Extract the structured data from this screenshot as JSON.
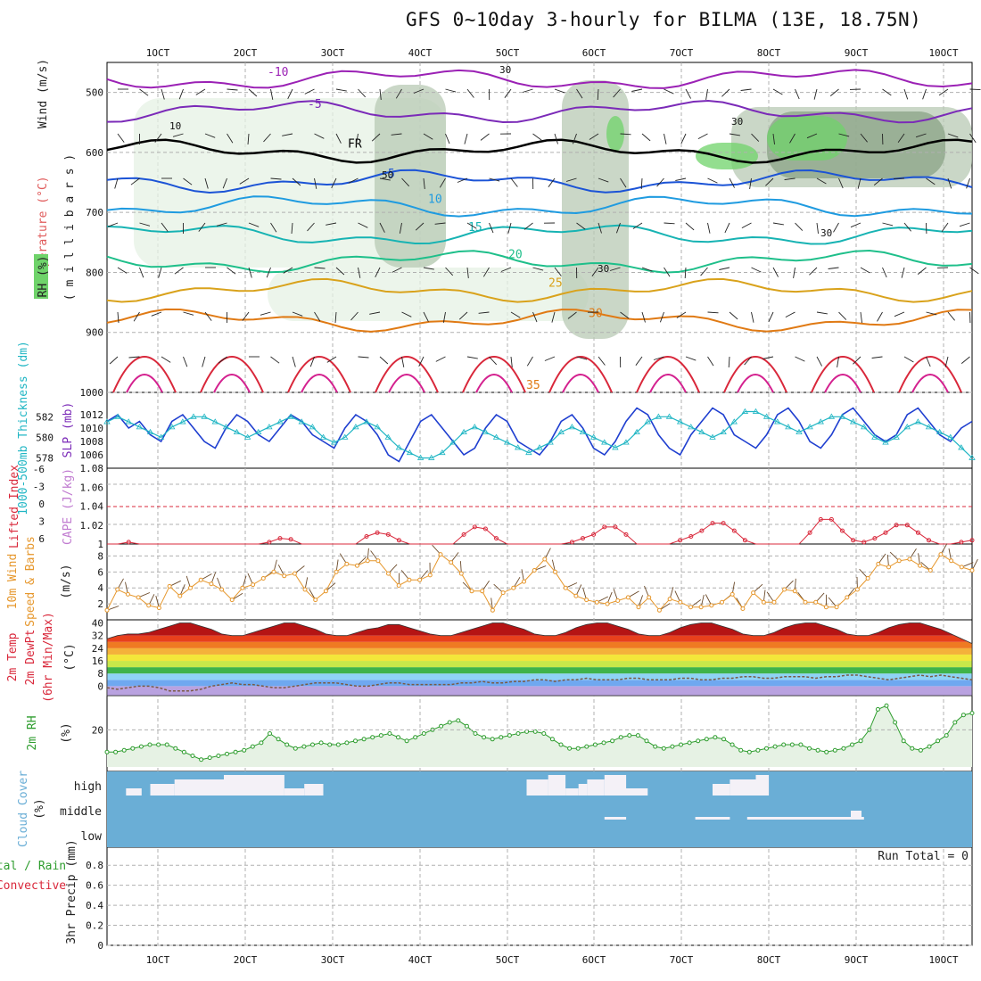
{
  "title": "GFS 0~10day 3-hourly for BILMA (13E, 18.75N)",
  "x_labels": [
    "1OCT",
    "2OCT",
    "3OCT",
    "4OCT",
    "5OCT",
    "6OCT",
    "7OCT",
    "8OCT",
    "9OCT",
    "10OCT"
  ],
  "colors": {
    "grid": "#b0b0b0",
    "rh_light": "#e6f2e4",
    "rh_mid": "#b8c9b4",
    "rh_dark": "#8aa386",
    "rh_green": "#6fd36a",
    "t_m10": "#9b21b5",
    "t_m5": "#7b2ab8",
    "t_fr": "#000000",
    "t_5": "#1b53d6",
    "t_10": "#1f9be0",
    "t_15": "#17b3b3",
    "t_20": "#1ebf8a",
    "t_25": "#d9a21b",
    "t_30": "#e07a14",
    "t_35": "#d9283b",
    "t_40": "#d4218f",
    "slp": "#1f3fd0",
    "thick": "#20b6c4",
    "cape": "#d9283b",
    "wind10": "#e6972c",
    "barb": "#6b4a2a",
    "rh2m": "#2e9d2e",
    "cloud": "#6aaed6",
    "dew": "#7a5a44"
  },
  "chart_data": [
    {
      "type": "contour",
      "panel": "upper-air",
      "ylabel": "Wind (m/s), Temperature (°C), RH (%) — millibars",
      "y_ticks": [
        500,
        600,
        700,
        800,
        900,
        1000
      ],
      "ylim": [
        450,
        1000
      ],
      "isotherm_labels": [
        "-10",
        "-5",
        "FR",
        "5",
        "10",
        "15",
        "20",
        "25",
        "30",
        "35"
      ],
      "isotherm_levels": [
        {
          "label": "-10",
          "base": 478
        },
        {
          "label": "-5",
          "base": 532
        },
        {
          "label": "FR",
          "base": 598
        },
        {
          "label": "5",
          "base": 648
        },
        {
          "label": "10",
          "base": 690
        },
        {
          "label": "15",
          "base": 737
        },
        {
          "label": "20",
          "base": 782
        },
        {
          "label": "25",
          "base": 830
        },
        {
          "label": "30",
          "base": 880
        }
      ],
      "rh_labels": [
        "10",
        "30",
        "50",
        "30",
        "30",
        "30"
      ]
    },
    {
      "type": "line",
      "panel": "slp-thickness",
      "y_ticks_left": [
        578,
        580,
        582
      ],
      "y_ticks_right": [
        1006,
        1008,
        1010,
        1012
      ],
      "series": [
        {
          "name": "SLP (mb)",
          "values": [
            1011,
            1012,
            1010,
            1011,
            1009,
            1008,
            1011,
            1012,
            1010,
            1008,
            1007,
            1010,
            1012,
            1011,
            1009,
            1008,
            1010,
            1012,
            1011,
            1009,
            1008,
            1007,
            1010,
            1012,
            1011,
            1009,
            1006,
            1005,
            1008,
            1011,
            1012,
            1010,
            1008,
            1006,
            1007,
            1010,
            1012,
            1011,
            1008,
            1007,
            1006,
            1008,
            1011,
            1012,
            1010,
            1007,
            1006,
            1008,
            1011,
            1013,
            1012,
            1009,
            1007,
            1006,
            1009,
            1011,
            1013,
            1012,
            1009,
            1008,
            1007,
            1009,
            1012,
            1013,
            1011,
            1008,
            1007,
            1009,
            1012,
            1013,
            1011,
            1009,
            1008,
            1009,
            1012,
            1013,
            1011,
            1009,
            1008,
            1010,
            1011
          ]
        },
        {
          "name": "1000-500mb Thickness (dm)",
          "values": [
            581.5,
            582,
            581.5,
            581,
            580.5,
            580,
            581,
            581.5,
            582,
            582,
            581.5,
            581,
            580.5,
            580,
            580.5,
            581,
            581.5,
            582,
            581.5,
            581,
            580,
            579.5,
            580,
            581,
            581.5,
            581,
            580,
            579,
            578.5,
            578,
            578,
            578.5,
            579.5,
            580.5,
            581,
            580.5,
            580,
            579.5,
            579,
            578.5,
            579,
            579.5,
            580.5,
            581,
            580.5,
            580,
            579.5,
            579,
            579.5,
            580.5,
            581.5,
            582,
            582,
            581.5,
            581,
            580.5,
            580,
            580.5,
            581.5,
            582.5,
            582.5,
            582,
            581.5,
            581,
            580.5,
            581,
            581.5,
            582,
            582,
            581.5,
            581,
            580,
            579.5,
            580,
            581,
            581.5,
            581,
            580.5,
            580,
            579,
            578
          ]
        }
      ]
    },
    {
      "type": "line",
      "panel": "lifted-index-cape",
      "y_ticks_left": [
        -6,
        -3,
        0,
        3,
        6
      ],
      "y_ticks_right": [
        1,
        1.02,
        1.04,
        1.06,
        1.08
      ],
      "series": [
        {
          "name": "CAPE (J/kg)",
          "values": [
            1,
            1,
            1.002,
            1,
            1,
            1,
            1,
            1,
            1,
            1,
            1,
            1,
            1,
            1,
            1,
            1.002,
            1.006,
            1.005,
            1,
            1,
            1,
            1,
            1,
            1,
            1.008,
            1.012,
            1.01,
            1.004,
            1,
            1,
            1,
            1,
            1,
            1.01,
            1.018,
            1.016,
            1.006,
            1,
            1,
            1,
            1,
            1,
            1,
            1.002,
            1.006,
            1.01,
            1.018,
            1.018,
            1.01,
            1,
            1,
            1,
            1,
            1.004,
            1.008,
            1.014,
            1.022,
            1.022,
            1.014,
            1.004,
            1,
            1,
            1,
            1,
            1,
            1.012,
            1.026,
            1.026,
            1.014,
            1.004,
            1.002,
            1.006,
            1.012,
            1.02,
            1.02,
            1.012,
            1.004,
            1,
            1,
            1.002,
            1.004
          ]
        },
        {
          "name": "Lifted Index",
          "values": []
        }
      ]
    },
    {
      "type": "line",
      "panel": "10m-wind",
      "y_ticks": [
        2,
        4,
        6,
        8
      ],
      "ylabel": "10m Wind Speed & Barbs (m/s)",
      "series": [
        {
          "name": "10m Wind Speed",
          "values": [
            1.2,
            3.8,
            3.2,
            2.8,
            1.8,
            1.5,
            4.2,
            3,
            4,
            5,
            4.5,
            3.8,
            2.5,
            4,
            4.4,
            5.2,
            6,
            5.5,
            5.8,
            3.8,
            2.5,
            3.6,
            6,
            7,
            6.8,
            7.4,
            7.4,
            5.8,
            4.3,
            5,
            5,
            5.6,
            8.2,
            7.2,
            5.8,
            3.6,
            3.6,
            1.2,
            3.4,
            4,
            4.8,
            6.2,
            7.6,
            6,
            4,
            3,
            2.5,
            2.2,
            2,
            2.4,
            2.8,
            1.6,
            2.8,
            1.2,
            2.6,
            2.2,
            1.6,
            1.6,
            1.8,
            2.2,
            3.2,
            1.4,
            3.4,
            2.2,
            2.2,
            3.8,
            3.6,
            2.2,
            2.2,
            1.6,
            1.6,
            2.8,
            3.8,
            5.2,
            7,
            6.6,
            7.4,
            7.6,
            6.8,
            6.2,
            8.2,
            7.4,
            6.6,
            6.2
          ]
        }
      ]
    },
    {
      "type": "area",
      "panel": "2m-temp",
      "y_ticks": [
        0,
        8,
        16,
        24,
        32,
        40
      ],
      "ylabel": "2m Temp, 2m DewPt (6hr Min/Max) (°C)",
      "series": [
        {
          "name": "2m Temp",
          "values": [
            30,
            32,
            33,
            33,
            34,
            36,
            38,
            40,
            40,
            38,
            36,
            33,
            32,
            32,
            34,
            36,
            38,
            40,
            40,
            38,
            36,
            33,
            32,
            32,
            34,
            36,
            37,
            39,
            39,
            37,
            35,
            33,
            32,
            32,
            34,
            36,
            38,
            40,
            40,
            38,
            36,
            33,
            32,
            32,
            34,
            37,
            39,
            40,
            40,
            38,
            36,
            33,
            32,
            32,
            34,
            37,
            39,
            40,
            40,
            38,
            36,
            33,
            32,
            32,
            34,
            37,
            39,
            40,
            40,
            38,
            36,
            33,
            32,
            32,
            34,
            37,
            39,
            40,
            40,
            38,
            36,
            33,
            30,
            27
          ]
        },
        {
          "name": "2m DewPt",
          "values": [
            -1,
            -2,
            -1,
            0,
            0,
            -1,
            -3,
            -3,
            -3,
            -2,
            0,
            1,
            2,
            1,
            1,
            0,
            -1,
            -1,
            0,
            1,
            2,
            2,
            2,
            1,
            0,
            0,
            1,
            2,
            2,
            1,
            1,
            1,
            1,
            1,
            2,
            2,
            3,
            2,
            2,
            3,
            3,
            4,
            4,
            3,
            4,
            4,
            5,
            4,
            4,
            4,
            5,
            5,
            4,
            4,
            4,
            5,
            5,
            4,
            4,
            5,
            5,
            6,
            6,
            5,
            5,
            6,
            6,
            6,
            5,
            6,
            6,
            7,
            7,
            6,
            5,
            4,
            5,
            6,
            7,
            6,
            7,
            6,
            5,
            4
          ]
        }
      ]
    },
    {
      "type": "area",
      "panel": "2m-rh",
      "y_ticks": [
        20
      ],
      "ylabel": "2m RH (%)",
      "series": [
        {
          "name": "2m RH",
          "values": [
            8,
            8,
            9,
            10,
            11,
            12,
            12,
            12,
            10,
            8,
            6,
            4,
            5,
            6,
            7,
            8,
            9,
            11,
            13,
            18,
            15,
            12,
            10,
            11,
            12,
            13,
            12,
            12,
            13,
            14,
            15,
            16,
            17,
            18,
            16,
            14,
            16,
            18,
            20,
            22,
            24,
            25,
            22,
            18,
            16,
            15,
            16,
            17,
            18,
            19,
            19,
            18,
            15,
            12,
            10,
            10,
            11,
            12,
            13,
            14,
            16,
            17,
            17,
            14,
            11,
            10,
            11,
            12,
            13,
            14,
            15,
            16,
            15,
            12,
            9,
            8,
            9,
            10,
            11,
            12,
            12,
            12,
            10,
            9,
            8,
            9,
            10,
            12,
            14,
            20,
            31,
            33,
            24,
            14,
            10,
            9,
            11,
            14,
            17,
            24,
            28,
            29
          ]
        }
      ]
    },
    {
      "type": "heatmap",
      "panel": "cloud-cover",
      "y_labels": [
        "high",
        "middle",
        "low"
      ],
      "ylabel": "Cloud Cover (%)",
      "high_cloud_intervals": [
        [
          0.022,
          0.04
        ],
        [
          0.05,
          0.078
        ],
        [
          0.078,
          0.135
        ],
        [
          0.135,
          0.205
        ],
        [
          0.205,
          0.228
        ],
        [
          0.228,
          0.25
        ],
        [
          0.485,
          0.51
        ],
        [
          0.51,
          0.53
        ],
        [
          0.53,
          0.545
        ],
        [
          0.545,
          0.555
        ],
        [
          0.555,
          0.575
        ],
        [
          0.575,
          0.6
        ],
        [
          0.6,
          0.625
        ],
        [
          0.7,
          0.72
        ],
        [
          0.72,
          0.75
        ],
        [
          0.75,
          0.765
        ]
      ],
      "mid_cloud_intervals": [
        [
          0.575,
          0.6
        ],
        [
          0.68,
          0.72
        ],
        [
          0.74,
          0.86
        ],
        [
          0.86,
          0.875
        ]
      ]
    },
    {
      "type": "area",
      "panel": "3hr-precip",
      "y_ticks": [
        0,
        0.2,
        0.4,
        0.6,
        0.8
      ],
      "ylabel": "3hr Precip (mm)",
      "legend": [
        "Total / Rain",
        "Convective"
      ],
      "annotation": "Run Total = 0",
      "values": []
    }
  ],
  "panel_labels": {
    "wind": "Wind (m/s)",
    "temperature": "Temperature (°C)",
    "rh": "RH (%)",
    "millibars": "( m i l l i b a r s )",
    "thickness": "1000-500mb Thickness (dm)",
    "slp": "SLP (mb)",
    "lifted": "Lifted Index",
    "cape": "CAPE (J/kg)",
    "wind10": "10m Wind",
    "wind10b": "Speed & Barbs",
    "wind10u": "(m/s)",
    "temp2m": "2m Temp",
    "dew2m": "2m DewPt",
    "dew2mb": "(6hr Min/Max)",
    "tempunit": "(°C)",
    "rh2m": "2m RH",
    "rh2mu": "(%)",
    "cloud": "Cloud Cover",
    "cloudu": "(%)",
    "precip": "3hr Precip (mm)",
    "totalrain": "tal / Rain",
    "convective": "Convective",
    "runtotal": "Run Total = 0"
  }
}
